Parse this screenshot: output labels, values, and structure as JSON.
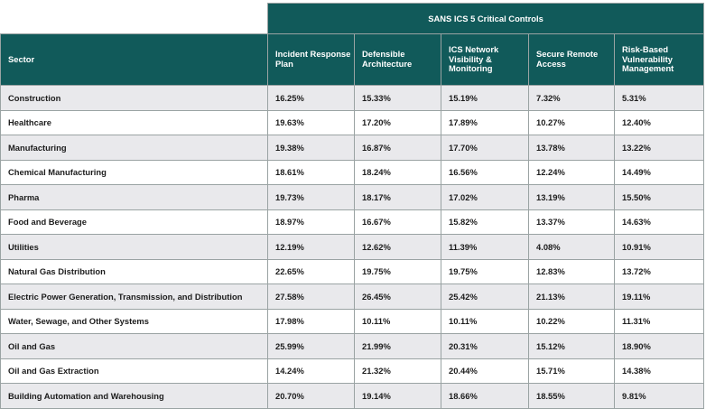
{
  "table": {
    "group_header": "SANS ICS 5 Critical Controls",
    "columns": [
      "Sector",
      "Incident Response Plan",
      "Defensible Architecture",
      "ICS Network Visibility & Monitoring",
      "Secure Remote Access",
      "Risk-Based Vulnerability Management"
    ],
    "rows": [
      [
        "Construction",
        "16.25%",
        "15.33%",
        "15.19%",
        "7.32%",
        "5.31%"
      ],
      [
        "Healthcare",
        "19.63%",
        "17.20%",
        "17.89%",
        "10.27%",
        "12.40%"
      ],
      [
        "Manufacturing",
        "19.38%",
        "16.87%",
        "17.70%",
        "13.78%",
        "13.22%"
      ],
      [
        "Chemical Manufacturing",
        "18.61%",
        "18.24%",
        "16.56%",
        "12.24%",
        "14.49%"
      ],
      [
        "Pharma",
        "19.73%",
        "18.17%",
        "17.02%",
        "13.19%",
        "15.50%"
      ],
      [
        "Food and Beverage",
        "18.97%",
        "16.67%",
        "15.82%",
        "13.37%",
        "14.63%"
      ],
      [
        "Utilities",
        "12.19%",
        "12.62%",
        "11.39%",
        "4.08%",
        "10.91%"
      ],
      [
        "Natural Gas Distribution",
        "22.65%",
        "19.75%",
        "19.75%",
        "12.83%",
        "13.72%"
      ],
      [
        "Electric Power Generation, Transmission, and Distribution",
        "27.58%",
        "26.45%",
        "25.42%",
        "21.13%",
        "19.11%"
      ],
      [
        "Water, Sewage, and Other Systems",
        "17.98%",
        "10.11%",
        "10.11%",
        "10.22%",
        "11.31%"
      ],
      [
        "Oil and Gas",
        "25.99%",
        "21.99%",
        "20.31%",
        "15.12%",
        "18.90%"
      ],
      [
        "Oil and Gas Extraction",
        "14.24%",
        "21.32%",
        "20.44%",
        "15.71%",
        "14.38%"
      ],
      [
        "Building Automation and Warehousing",
        "20.70%",
        "19.14%",
        "18.66%",
        "18.55%",
        "9.81%"
      ]
    ]
  }
}
